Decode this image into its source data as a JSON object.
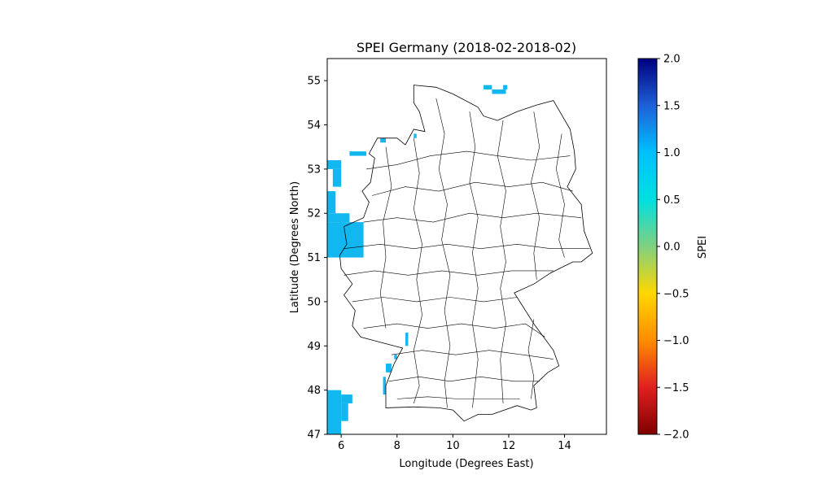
{
  "chart_data": {
    "type": "heatmap",
    "title": "SPEI Germany (2018-02-2018-02)",
    "xlabel": "Longitude (Degrees East)",
    "ylabel": "Latitude (Degrees North)",
    "xlim": [
      5.5,
      15.5
    ],
    "ylim": [
      47,
      55.5
    ],
    "xticks": [
      6,
      8,
      10,
      12,
      14
    ],
    "xtick_labels": [
      "6",
      "8",
      "10",
      "12",
      "14"
    ],
    "yticks": [
      47,
      48,
      49,
      50,
      51,
      52,
      53,
      54,
      55
    ],
    "ytick_labels": [
      "47",
      "48",
      "49",
      "50",
      "51",
      "52",
      "53",
      "54",
      "55"
    ],
    "grid": false,
    "colorbar": {
      "label": "SPEI",
      "vmin": -2.0,
      "vmax": 2.0,
      "ticks": [
        -2.0,
        -1.5,
        -1.0,
        -0.5,
        0.0,
        0.5,
        1.0,
        1.5,
        2.0
      ],
      "tick_labels": [
        "−2.0",
        "−1.5",
        "−1.0",
        "−0.5",
        "0.0",
        "0.5",
        "1.0",
        "1.5",
        "2.0"
      ],
      "colormap": [
        "#800000",
        "#e02020",
        "#ff8c00",
        "#ffd700",
        "#80d080",
        "#00e0e0",
        "#00c0ff",
        "#1e60d8",
        "#00007f"
      ]
    },
    "cell_color": "#13b7f0",
    "cells": [
      {
        "lon": [
          5.5,
          6.0
        ],
        "lat": [
          47.0,
          48.0
        ],
        "value": 1.0
      },
      {
        "lon": [
          6.0,
          6.4
        ],
        "lat": [
          47.7,
          47.9
        ],
        "value": 1.0
      },
      {
        "lon": [
          6.0,
          6.25
        ],
        "lat": [
          47.3,
          47.7
        ],
        "value": 1.0
      },
      {
        "lon": [
          5.5,
          6.8
        ],
        "lat": [
          51.0,
          51.8
        ],
        "value": 1.0
      },
      {
        "lon": [
          5.5,
          6.3
        ],
        "lat": [
          51.8,
          52.0
        ],
        "value": 1.0
      },
      {
        "lon": [
          5.5,
          5.8
        ],
        "lat": [
          52.0,
          52.5
        ],
        "value": 1.0
      },
      {
        "lon": [
          5.5,
          6.0
        ],
        "lat": [
          53.0,
          53.2
        ],
        "value": 1.0
      },
      {
        "lon": [
          5.7,
          6.0
        ],
        "lat": [
          52.6,
          53.0
        ],
        "value": 1.0
      },
      {
        "lon": [
          6.3,
          6.9
        ],
        "lat": [
          53.3,
          53.4
        ],
        "value": 1.0
      },
      {
        "lon": [
          7.5,
          7.6
        ],
        "lat": [
          47.9,
          48.3
        ],
        "value": 1.0
      },
      {
        "lon": [
          7.6,
          7.8
        ],
        "lat": [
          48.4,
          48.6
        ],
        "value": 1.0
      },
      {
        "lon": [
          7.9,
          8.0
        ],
        "lat": [
          48.7,
          48.8
        ],
        "value": 1.0
      },
      {
        "lon": [
          8.3,
          8.4
        ],
        "lat": [
          49.0,
          49.3
        ],
        "value": 1.0
      },
      {
        "lon": [
          11.1,
          11.4
        ],
        "lat": [
          54.8,
          54.9
        ],
        "value": 1.0
      },
      {
        "lon": [
          11.4,
          11.9
        ],
        "lat": [
          54.7,
          54.8
        ],
        "value": 1.0
      },
      {
        "lon": [
          11.8,
          11.95
        ],
        "lat": [
          54.8,
          54.9
        ],
        "value": 1.0
      },
      {
        "lon": [
          8.6,
          8.7
        ],
        "lat": [
          53.7,
          53.8
        ],
        "value": 1.0
      },
      {
        "lon": [
          7.4,
          7.6
        ],
        "lat": [
          53.6,
          53.7
        ],
        "value": 1.0
      }
    ]
  }
}
